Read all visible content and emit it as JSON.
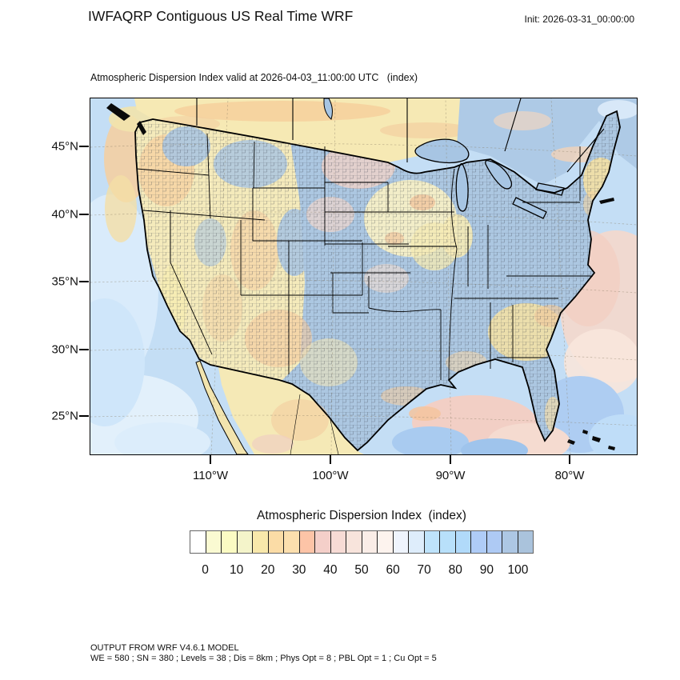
{
  "header": {
    "title": "IWFAQRP Contiguous US Real Time WRF",
    "init": "Init: 2026-03-31_00:00:00"
  },
  "map": {
    "subtitle": "Atmospheric Dispersion Index valid at 2026-04-03_11:00:00 UTC   (index)",
    "y_axis_labels": [
      "45°N",
      "40°N",
      "35°N",
      "30°N",
      "25°N"
    ],
    "x_axis_labels": [
      "110°W",
      "100°W",
      "90°W",
      "80°W"
    ]
  },
  "legend": {
    "title": "Atmospheric Dispersion Index  (index)",
    "tick_labels": [
      "0",
      "10",
      "20",
      "30",
      "40",
      "50",
      "60",
      "70",
      "80",
      "90",
      "100"
    ],
    "cell_colors": [
      "#FFFFFF",
      "#FAFAD2",
      "#FBFBC3",
      "#F4F4CA",
      "#F8E8AB",
      "#FBDCA6",
      "#FCDFAE",
      "#FDC4A7",
      "#F4CFC9",
      "#F7DBD5",
      "#F8E4DC",
      "#FAEDE7",
      "#FDF3EE",
      "#EFF4FD",
      "#DEEDFB",
      "#BEE3FB",
      "#B8E0FA",
      "#B1DAFA",
      "#AFCCF7",
      "#AECAF4",
      "#ADC7E4",
      "#AAC3DC"
    ]
  },
  "footer": {
    "line1": "OUTPUT FROM WRF V4.6.1 MODEL",
    "line2": "WE = 580 ; SN = 380 ; Levels = 38 ; Dis = 8km ; Phys Opt = 8 ; PBL Opt = 1 ; Cu Opt = 5"
  },
  "chart_data": {
    "type": "heatmap",
    "title": "Atmospheric Dispersion Index  (index)",
    "region": "Contiguous US",
    "model": "WRF V4.6.1",
    "init_time": "2026-03-31_00:00:00",
    "valid_time": "2026-04-03_11:00:00 UTC",
    "colorbar": {
      "min": 0,
      "max": 100,
      "tick_interval": 10,
      "n_cells": 22
    },
    "x_ticks": [
      "110°W",
      "100°W",
      "90°W",
      "80°W"
    ],
    "y_ticks": [
      "45°N",
      "40°N",
      "35°N",
      "30°N",
      "25°N"
    ],
    "grid_params": {
      "WE": 580,
      "SN": 380,
      "Levels": 38,
      "Dis": "8km",
      "Phys_Opt": 8,
      "PBL_Opt": 1,
      "Cu_Opt": 5
    }
  }
}
